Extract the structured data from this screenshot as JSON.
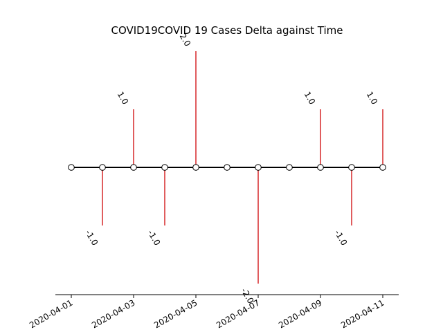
{
  "chart_data": {
    "type": "stem",
    "title": "COVID19COVID 19 Cases Delta against Time",
    "xlabel": "",
    "ylabel": "",
    "x": [
      "2020-04-01",
      "2020-04-02",
      "2020-04-03",
      "2020-04-04",
      "2020-04-05",
      "2020-04-06",
      "2020-04-07",
      "2020-04-08",
      "2020-04-09",
      "2020-04-10",
      "2020-04-11"
    ],
    "values": [
      0,
      -1,
      1,
      -1,
      2,
      0,
      -2,
      0,
      1,
      -1,
      1
    ],
    "data_labels": [
      "",
      "-1.0",
      "1.0",
      "-1.0",
      "2.0",
      "",
      "-2.0",
      "",
      "1.0",
      "-1.0",
      "1.0"
    ],
    "x_ticks": [
      "2020-04-01",
      "2020-04-03",
      "2020-04-05",
      "2020-04-07",
      "2020-04-09",
      "2020-04-11"
    ],
    "ylim": [
      -2.2,
      2.2
    ],
    "grid": false,
    "stem_color": "#d62728",
    "baseline_color": "#000000",
    "marker_face": "#ffffff",
    "marker_edge": "#000000"
  }
}
